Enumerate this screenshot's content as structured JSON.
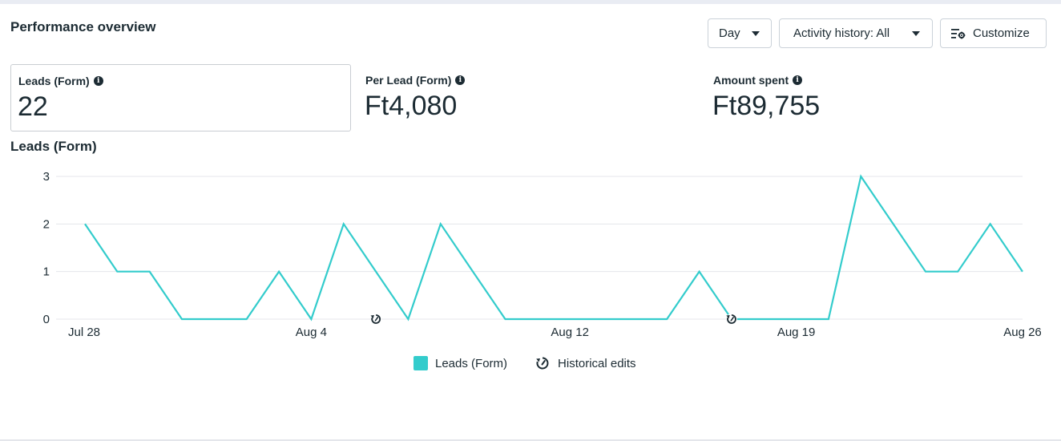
{
  "header": {
    "title": "Performance overview",
    "buttons": {
      "day": "Day",
      "activity": "Activity history: All",
      "customize": "Customize"
    }
  },
  "metrics": [
    {
      "label": "Leads (Form)",
      "value": "22",
      "selected": true
    },
    {
      "label": "Per Lead (Form)",
      "value": "Ft4,080",
      "selected": false
    },
    {
      "label": "Amount spent",
      "value": "Ft89,755",
      "selected": false
    }
  ],
  "colors": {
    "series": "#33cccc",
    "grid": "#e4e6eb",
    "text": "#1c2b33"
  },
  "chart_title": "Leads (Form)",
  "chart_data": {
    "type": "line",
    "title": "Leads (Form)",
    "xlabel": "",
    "ylabel": "",
    "ylim": [
      0,
      3
    ],
    "yticks": [
      0,
      1,
      2,
      3
    ],
    "x": [
      "Jul 28",
      "Jul 29",
      "Jul 30",
      "Jul 31",
      "Aug 1",
      "Aug 2",
      "Aug 3",
      "Aug 4",
      "Aug 5",
      "Aug 6",
      "Aug 7",
      "Aug 8",
      "Aug 9",
      "Aug 10",
      "Aug 11",
      "Aug 12",
      "Aug 13",
      "Aug 14",
      "Aug 15",
      "Aug 16",
      "Aug 17",
      "Aug 18",
      "Aug 19",
      "Aug 20",
      "Aug 21",
      "Aug 22",
      "Aug 23",
      "Aug 24",
      "Aug 25",
      "Aug 26"
    ],
    "xtick_labels": [
      "Jul 28",
      "Aug 4",
      "Aug 12",
      "Aug 19",
      "Aug 26"
    ],
    "series": [
      {
        "name": "Leads (Form)",
        "values": [
          2,
          1,
          1,
          0,
          0,
          0,
          1,
          0,
          2,
          1,
          0,
          2,
          1,
          0,
          0,
          0,
          0,
          0,
          0,
          1,
          0,
          0,
          0,
          0,
          3,
          2,
          1,
          1,
          2,
          1
        ]
      }
    ],
    "historical_edit_dates": [
      "Aug 6",
      "Aug 17"
    ],
    "grid": true,
    "legend": "bottom-center"
  },
  "legend": {
    "series_label": "Leads (Form)",
    "edits_label": "Historical edits",
    "edits_icon": "historical-edits-icon"
  }
}
